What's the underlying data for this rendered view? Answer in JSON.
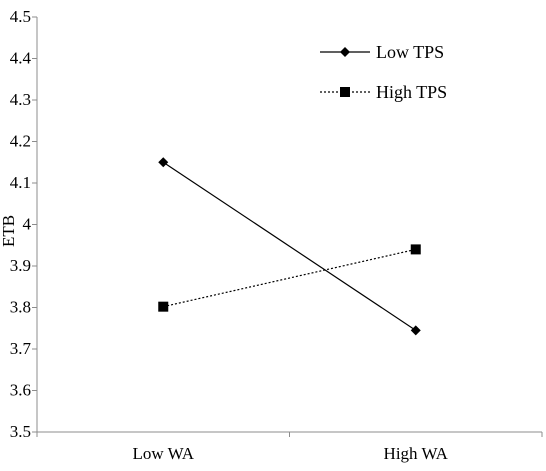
{
  "chart_data": {
    "type": "line",
    "categories": [
      "Low WA",
      "High WA"
    ],
    "series": [
      {
        "name": "Low TPS",
        "values": [
          4.15,
          3.745
        ],
        "marker": "diamond",
        "line": "solid",
        "color": "#000000"
      },
      {
        "name": "High TPS",
        "values": [
          3.802,
          3.94
        ],
        "marker": "square",
        "line": "dotted",
        "color": "#000000"
      }
    ],
    "ylabel": "ETB",
    "xlabel": "",
    "ylim": [
      3.5,
      4.5
    ],
    "ytick_step": 0.1,
    "yticks": [
      "3.5",
      "3.6",
      "3.7",
      "3.8",
      "3.9",
      "4",
      "4.1",
      "4.2",
      "4.3",
      "4.4",
      "4.5"
    ],
    "grid": false,
    "legend_position": "top-right"
  }
}
